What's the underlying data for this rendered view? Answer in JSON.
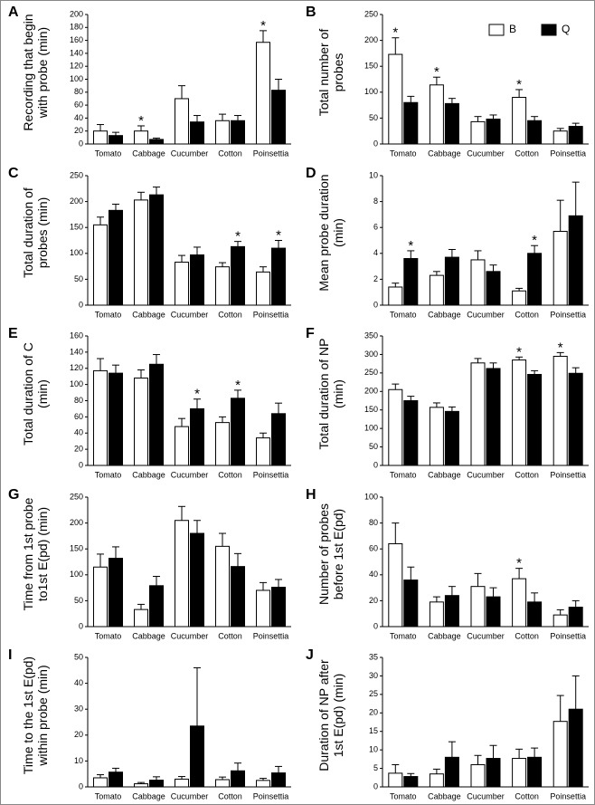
{
  "chart_data": [
    {
      "type": "bar",
      "label": "A",
      "y_label": "Recording that begin with probe (min)",
      "categories": [
        "Tomato",
        "Cabbage",
        "Cucumber",
        "Cotton",
        "Poinsettia"
      ],
      "ylim": [
        0,
        200
      ],
      "yticks": [
        0,
        20,
        40,
        60,
        80,
        100,
        120,
        140,
        160,
        180,
        200
      ],
      "series": [
        {
          "color": "#ffffff",
          "values": [
            20,
            20,
            70,
            36,
            157
          ],
          "errors": [
            10,
            8,
            20,
            10,
            18
          ],
          "annotations": [
            null,
            "*",
            null,
            null,
            "*"
          ]
        },
        {
          "color": "#000000",
          "values": [
            13,
            7,
            34,
            36,
            83
          ],
          "errors": [
            5,
            2,
            10,
            8,
            17
          ],
          "annotations": [
            null,
            null,
            null,
            null,
            null
          ]
        }
      ]
    },
    {
      "type": "bar",
      "label": "B",
      "y_label": "Total number of probes",
      "categories": [
        "Tomato",
        "Cabbage",
        "Cucumber",
        "Cotton",
        "Poinsettia"
      ],
      "ylim": [
        0,
        250
      ],
      "yticks": [
        0,
        50,
        100,
        150,
        200,
        250
      ],
      "legend": [
        {
          "name": "B",
          "color": "#ffffff"
        },
        {
          "name": "Q",
          "color": "#000000"
        }
      ],
      "series": [
        {
          "color": "#ffffff",
          "values": [
            173,
            114,
            43,
            90,
            25
          ],
          "errors": [
            32,
            15,
            10,
            15,
            5
          ],
          "annotations": [
            "*",
            "*",
            null,
            "*",
            null
          ]
        },
        {
          "color": "#000000",
          "values": [
            80,
            78,
            48,
            45,
            34
          ],
          "errors": [
            12,
            10,
            8,
            8,
            6
          ],
          "annotations": [
            null,
            null,
            null,
            null,
            null
          ]
        }
      ]
    },
    {
      "type": "bar",
      "label": "C",
      "y_label": "Total duration of probes (min)",
      "categories": [
        "Tomato",
        "Cabbage",
        "Cucumber",
        "Cotton",
        "Poinsettia"
      ],
      "ylim": [
        0,
        250
      ],
      "yticks": [
        0,
        50,
        100,
        150,
        200,
        250
      ],
      "series": [
        {
          "color": "#ffffff",
          "values": [
            155,
            203,
            83,
            74,
            64
          ],
          "errors": [
            15,
            15,
            13,
            8,
            10
          ],
          "annotations": [
            null,
            null,
            null,
            null,
            null
          ]
        },
        {
          "color": "#000000",
          "values": [
            183,
            213,
            97,
            113,
            110
          ],
          "errors": [
            12,
            15,
            15,
            10,
            15
          ],
          "annotations": [
            null,
            null,
            null,
            "*",
            "*"
          ]
        }
      ]
    },
    {
      "type": "bar",
      "label": "D",
      "y_label": "Mean probe duration (min)",
      "categories": [
        "Tomato",
        "Cabbage",
        "Cucumber",
        "Cotton",
        "Poinsettia"
      ],
      "ylim": [
        0,
        10
      ],
      "yticks": [
        0,
        2,
        4,
        6,
        8,
        10
      ],
      "series": [
        {
          "color": "#ffffff",
          "values": [
            1.4,
            2.3,
            3.5,
            1.1,
            5.7
          ],
          "errors": [
            0.3,
            0.3,
            0.7,
            0.2,
            2.4
          ],
          "annotations": [
            null,
            null,
            null,
            null,
            null
          ]
        },
        {
          "color": "#000000",
          "values": [
            3.6,
            3.7,
            2.6,
            4.0,
            6.9
          ],
          "errors": [
            0.6,
            0.6,
            0.5,
            0.6,
            2.6
          ],
          "annotations": [
            "*",
            null,
            null,
            "*",
            null
          ]
        }
      ]
    },
    {
      "type": "bar",
      "label": "E",
      "y_label": "Total duration of C (min)",
      "categories": [
        "Tomato",
        "Cabbage",
        "Cucumber",
        "Cotton",
        "Poinsettia"
      ],
      "ylim": [
        0,
        160
      ],
      "yticks": [
        0,
        20,
        40,
        60,
        80,
        100,
        120,
        140,
        160
      ],
      "series": [
        {
          "color": "#ffffff",
          "values": [
            117,
            108,
            48,
            53,
            34
          ],
          "errors": [
            15,
            10,
            10,
            7,
            6
          ],
          "annotations": [
            null,
            null,
            null,
            null,
            null
          ]
        },
        {
          "color": "#000000",
          "values": [
            114,
            125,
            70,
            83,
            64
          ],
          "errors": [
            10,
            12,
            12,
            10,
            13
          ],
          "annotations": [
            null,
            null,
            "*",
            "*",
            null
          ]
        }
      ]
    },
    {
      "type": "bar",
      "label": "F",
      "y_label": "Total duration of NP (min)",
      "categories": [
        "Tomato",
        "Cabbage",
        "Cucumber",
        "Cotton",
        "Poinsettia"
      ],
      "ylim": [
        0,
        350
      ],
      "yticks": [
        0,
        50,
        100,
        150,
        200,
        250,
        300,
        350
      ],
      "series": [
        {
          "color": "#ffffff",
          "values": [
            205,
            157,
            277,
            285,
            295
          ],
          "errors": [
            15,
            12,
            12,
            8,
            10
          ],
          "annotations": [
            null,
            null,
            null,
            "*",
            "*"
          ]
        },
        {
          "color": "#000000",
          "values": [
            175,
            146,
            262,
            246,
            249
          ],
          "errors": [
            12,
            12,
            15,
            10,
            15
          ],
          "annotations": [
            null,
            null,
            null,
            null,
            null
          ]
        }
      ]
    },
    {
      "type": "bar",
      "label": "G",
      "y_label": "Time from 1st probe to1st E(pd) (min)",
      "categories": [
        "Tomato",
        "Cabbage",
        "Cucumber",
        "Cotton",
        "Poinsettia"
      ],
      "ylim": [
        0,
        250
      ],
      "yticks": [
        0,
        50,
        100,
        150,
        200,
        250
      ],
      "series": [
        {
          "color": "#ffffff",
          "values": [
            115,
            33,
            205,
            155,
            70
          ],
          "errors": [
            25,
            10,
            27,
            25,
            15
          ],
          "annotations": [
            null,
            null,
            null,
            null,
            null
          ]
        },
        {
          "color": "#000000",
          "values": [
            132,
            79,
            180,
            116,
            76
          ],
          "errors": [
            22,
            18,
            25,
            25,
            15
          ],
          "annotations": [
            null,
            null,
            null,
            null,
            null
          ]
        }
      ]
    },
    {
      "type": "bar",
      "label": "H",
      "y_label": "Number of probes before 1st E(pd)",
      "categories": [
        "Tomato",
        "Cabbage",
        "Cucumber",
        "Cotton",
        "Poinsettia"
      ],
      "ylim": [
        0,
        100
      ],
      "yticks": [
        0,
        20,
        40,
        60,
        80,
        100
      ],
      "series": [
        {
          "color": "#ffffff",
          "values": [
            64,
            19,
            31,
            37,
            9
          ],
          "errors": [
            16,
            4,
            10,
            8,
            4
          ],
          "annotations": [
            null,
            null,
            null,
            "*",
            null
          ]
        },
        {
          "color": "#000000",
          "values": [
            36,
            24,
            23,
            19,
            15
          ],
          "errors": [
            10,
            7,
            7,
            7,
            5
          ],
          "annotations": [
            null,
            null,
            null,
            null,
            null
          ]
        }
      ]
    },
    {
      "type": "bar",
      "label": "I",
      "y_label": "Time to the 1st E(pd) within probe (min)",
      "categories": [
        "Tomato",
        "Cabbage",
        "Cucumber",
        "Cotton",
        "Poinsettia"
      ],
      "ylim": [
        0,
        50
      ],
      "yticks": [
        0,
        10,
        20,
        30,
        40,
        50
      ],
      "series": [
        {
          "color": "#ffffff",
          "values": [
            3.5,
            1.2,
            3.0,
            2.8,
            2.5
          ],
          "errors": [
            1.2,
            0.5,
            1,
            1,
            0.8
          ],
          "annotations": [
            null,
            null,
            null,
            null,
            null
          ]
        },
        {
          "color": "#000000",
          "values": [
            5.7,
            2.6,
            23.5,
            6.2,
            5.4
          ],
          "errors": [
            1.5,
            1.3,
            22.5,
            3,
            2.5
          ],
          "annotations": [
            null,
            null,
            null,
            null,
            null
          ]
        }
      ]
    },
    {
      "type": "bar",
      "label": "J",
      "y_label": "Duration of NP after 1st E(pd) (min)",
      "categories": [
        "Tomato",
        "Cabbage",
        "Cucumber",
        "Cotton",
        "Poinsettia"
      ],
      "ylim": [
        0,
        35
      ],
      "yticks": [
        0,
        5,
        10,
        15,
        20,
        25,
        30,
        35
      ],
      "series": [
        {
          "color": "#ffffff",
          "values": [
            3.7,
            3.5,
            6,
            7.7,
            17.7
          ],
          "errors": [
            2.3,
            1.3,
            2.5,
            2.5,
            7
          ],
          "annotations": [
            null,
            null,
            null,
            null,
            null
          ]
        },
        {
          "color": "#000000",
          "values": [
            2.8,
            8,
            7.7,
            8,
            21
          ],
          "errors": [
            0.8,
            4.2,
            3.5,
            2.5,
            9
          ],
          "annotations": [
            null,
            null,
            null,
            null,
            null
          ]
        }
      ]
    }
  ]
}
